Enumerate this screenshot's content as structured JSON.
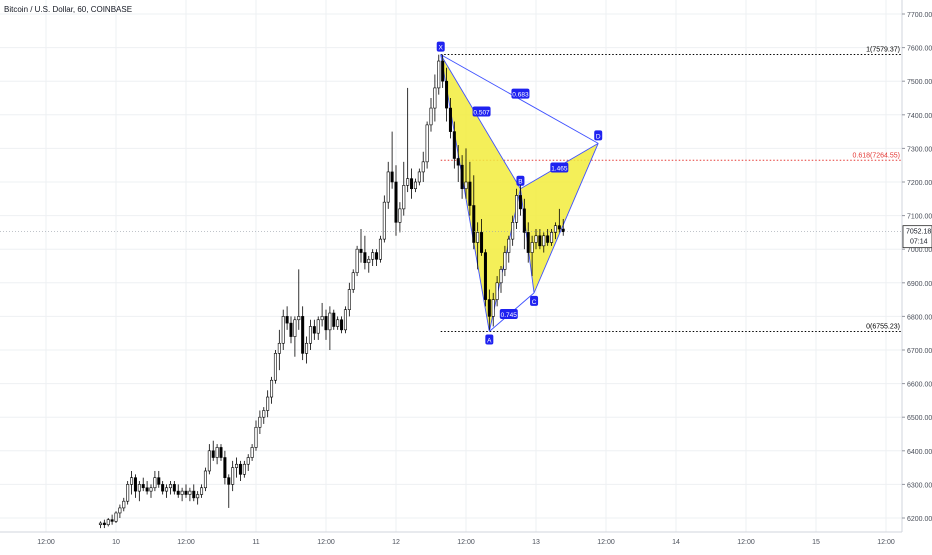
{
  "header": {
    "title": "Bitcoin / U.S. Dollar, 60, COINBASE"
  },
  "price_scale": {
    "last_price": "7052.18",
    "countdown": "07:14"
  },
  "colors": {
    "up_candle": "#ffffff",
    "down_candle": "#000000",
    "pattern_fill": "#f2ec3c",
    "pattern_line": "#3f51ff",
    "label_bg": "#1f22f0",
    "fib_black": "#000000",
    "fib_red": "#e53935",
    "grid": "#eef0f3"
  },
  "chart_data": {
    "type": "candlestick",
    "title": "Bitcoin / U.S. Dollar, 60, COINBASE",
    "ylim": [
      6160,
      7780
    ],
    "y_ticks": [
      6200,
      6300,
      6400,
      6500,
      6600,
      6700,
      6800,
      6900,
      7000,
      7100,
      7200,
      7300,
      7400,
      7500,
      7600,
      7700
    ],
    "x_range_bars": [
      0,
      248
    ],
    "x_ticks": [
      {
        "label": "12:00",
        "bar": 12
      },
      {
        "label": "10",
        "bar": 30
      },
      {
        "label": "12:00",
        "bar": 48
      },
      {
        "label": "11",
        "bar": 66
      },
      {
        "label": "12:00",
        "bar": 84
      },
      {
        "label": "12",
        "bar": 102
      },
      {
        "label": "12:00",
        "bar": 120
      },
      {
        "label": "13",
        "bar": 138
      },
      {
        "label": "12:00",
        "bar": 156
      },
      {
        "label": "14",
        "bar": 174
      },
      {
        "label": "12:00",
        "bar": 192
      },
      {
        "label": "15",
        "bar": 210
      },
      {
        "label": "12:00",
        "bar": 228
      }
    ],
    "grid": true,
    "candles": [
      [
        26,
        6180,
        6190,
        6170,
        6185
      ],
      [
        27,
        6185,
        6195,
        6170,
        6180
      ],
      [
        28,
        6180,
        6200,
        6175,
        6195
      ],
      [
        29,
        6195,
        6210,
        6180,
        6190
      ],
      [
        30,
        6190,
        6220,
        6185,
        6215
      ],
      [
        31,
        6215,
        6240,
        6200,
        6230
      ],
      [
        32,
        6230,
        6260,
        6220,
        6250
      ],
      [
        33,
        6250,
        6310,
        6240,
        6300
      ],
      [
        34,
        6300,
        6340,
        6270,
        6320
      ],
      [
        35,
        6320,
        6330,
        6260,
        6280
      ],
      [
        36,
        6280,
        6310,
        6250,
        6300
      ],
      [
        37,
        6300,
        6320,
        6280,
        6290
      ],
      [
        38,
        6290,
        6310,
        6270,
        6280
      ],
      [
        39,
        6280,
        6300,
        6260,
        6290
      ],
      [
        40,
        6290,
        6340,
        6280,
        6320
      ],
      [
        41,
        6320,
        6340,
        6290,
        6300
      ],
      [
        42,
        6300,
        6310,
        6270,
        6280
      ],
      [
        43,
        6280,
        6300,
        6260,
        6290
      ],
      [
        44,
        6290,
        6310,
        6270,
        6300
      ],
      [
        45,
        6300,
        6310,
        6270,
        6280
      ],
      [
        46,
        6280,
        6300,
        6260,
        6270
      ],
      [
        47,
        6270,
        6290,
        6250,
        6280
      ],
      [
        48,
        6280,
        6300,
        6260,
        6270
      ],
      [
        49,
        6270,
        6290,
        6250,
        6280
      ],
      [
        50,
        6280,
        6300,
        6250,
        6260
      ],
      [
        51,
        6260,
        6280,
        6240,
        6270
      ],
      [
        52,
        6270,
        6300,
        6260,
        6290
      ],
      [
        53,
        6290,
        6350,
        6280,
        6340
      ],
      [
        54,
        6340,
        6420,
        6330,
        6400
      ],
      [
        55,
        6400,
        6430,
        6370,
        6380
      ],
      [
        56,
        6380,
        6420,
        6360,
        6410
      ],
      [
        57,
        6410,
        6420,
        6370,
        6380
      ],
      [
        58,
        6380,
        6400,
        6300,
        6320
      ],
      [
        59,
        6320,
        6330,
        6230,
        6300
      ],
      [
        60,
        6300,
        6370,
        6280,
        6350
      ],
      [
        61,
        6350,
        6380,
        6320,
        6360
      ],
      [
        62,
        6360,
        6370,
        6310,
        6330
      ],
      [
        63,
        6330,
        6370,
        6320,
        6360
      ],
      [
        64,
        6360,
        6390,
        6340,
        6380
      ],
      [
        65,
        6380,
        6420,
        6370,
        6410
      ],
      [
        66,
        6410,
        6490,
        6400,
        6470
      ],
      [
        67,
        6470,
        6520,
        6450,
        6500
      ],
      [
        68,
        6500,
        6530,
        6480,
        6520
      ],
      [
        69,
        6520,
        6580,
        6500,
        6560
      ],
      [
        70,
        6560,
        6620,
        6540,
        6610
      ],
      [
        71,
        6610,
        6700,
        6600,
        6690
      ],
      [
        72,
        6690,
        6760,
        6640,
        6720
      ],
      [
        73,
        6720,
        6820,
        6700,
        6800
      ],
      [
        74,
        6800,
        6830,
        6760,
        6780
      ],
      [
        75,
        6780,
        6800,
        6720,
        6740
      ],
      [
        76,
        6740,
        6800,
        6680,
        6790
      ],
      [
        77,
        6790,
        6940,
        6760,
        6800
      ],
      [
        78,
        6800,
        6830,
        6670,
        6690
      ],
      [
        79,
        6690,
        6740,
        6660,
        6720
      ],
      [
        80,
        6720,
        6790,
        6700,
        6770
      ],
      [
        81,
        6770,
        6790,
        6730,
        6750
      ],
      [
        82,
        6750,
        6800,
        6730,
        6790
      ],
      [
        83,
        6790,
        6840,
        6770,
        6800
      ],
      [
        84,
        6800,
        6820,
        6730,
        6760
      ],
      [
        85,
        6760,
        6830,
        6700,
        6810
      ],
      [
        86,
        6810,
        6820,
        6760,
        6770
      ],
      [
        87,
        6770,
        6800,
        6760,
        6790
      ],
      [
        88,
        6790,
        6800,
        6750,
        6760
      ],
      [
        89,
        6760,
        6830,
        6750,
        6820
      ],
      [
        90,
        6820,
        6900,
        6800,
        6880
      ],
      [
        91,
        6880,
        6940,
        6870,
        6930
      ],
      [
        92,
        6930,
        7010,
        6920,
        7000
      ],
      [
        93,
        7000,
        7060,
        6960,
        6990
      ],
      [
        94,
        6990,
        7040,
        6940,
        6960
      ],
      [
        95,
        6960,
        6980,
        6930,
        6970
      ],
      [
        96,
        6970,
        7000,
        6950,
        6990
      ],
      [
        97,
        6990,
        7000,
        6950,
        6970
      ],
      [
        98,
        6970,
        7040,
        6960,
        7030
      ],
      [
        99,
        7030,
        7160,
        7020,
        7140
      ],
      [
        100,
        7140,
        7260,
        7120,
        7230
      ],
      [
        101,
        7230,
        7350,
        7180,
        7200
      ],
      [
        102,
        7200,
        7250,
        7040,
        7080
      ],
      [
        103,
        7080,
        7140,
        7050,
        7120
      ],
      [
        104,
        7120,
        7260,
        7100,
        7190
      ],
      [
        105,
        7190,
        7480,
        7170,
        7210
      ],
      [
        106,
        7210,
        7240,
        7150,
        7180
      ],
      [
        107,
        7180,
        7210,
        7170,
        7200
      ],
      [
        108,
        7200,
        7240,
        7190,
        7230
      ],
      [
        109,
        7230,
        7290,
        7200,
        7260
      ],
      [
        110,
        7260,
        7380,
        7240,
        7370
      ],
      [
        111,
        7370,
        7450,
        7350,
        7420
      ],
      [
        112,
        7420,
        7520,
        7380,
        7480
      ],
      [
        113,
        7480,
        7579,
        7460,
        7560
      ],
      [
        114,
        7560,
        7579,
        7480,
        7500
      ],
      [
        115,
        7500,
        7540,
        7380,
        7420
      ],
      [
        116,
        7420,
        7450,
        7330,
        7350
      ],
      [
        117,
        7350,
        7380,
        7240,
        7270
      ],
      [
        118,
        7270,
        7310,
        7200,
        7250
      ],
      [
        119,
        7250,
        7280,
        7150,
        7180
      ],
      [
        120,
        7180,
        7300,
        7150,
        7200
      ],
      [
        121,
        7200,
        7260,
        7100,
        7130
      ],
      [
        122,
        7130,
        7220,
        7000,
        7020
      ],
      [
        123,
        7020,
        7080,
        6940,
        7050
      ],
      [
        124,
        7050,
        7090,
        6980,
        6990
      ],
      [
        125,
        6990,
        7000,
        6830,
        6850
      ],
      [
        126,
        6850,
        6880,
        6760,
        6800
      ],
      [
        127,
        6800,
        6870,
        6770,
        6850
      ],
      [
        128,
        6850,
        6920,
        6830,
        6900
      ],
      [
        129,
        6900,
        6950,
        6870,
        6940
      ],
      [
        130,
        6940,
        7010,
        6920,
        6990
      ],
      [
        131,
        6990,
        7040,
        6960,
        7030
      ],
      [
        132,
        7030,
        7100,
        7010,
        7080
      ],
      [
        133,
        7080,
        7180,
        7060,
        7160
      ],
      [
        134,
        7160,
        7190,
        7100,
        7120
      ],
      [
        135,
        7120,
        7150,
        7000,
        7050
      ],
      [
        136,
        7050,
        7080,
        6960,
        6990
      ],
      [
        137,
        6990,
        7040,
        6920,
        7020
      ],
      [
        138,
        7020,
        7060,
        7000,
        7040
      ],
      [
        139,
        7040,
        7060,
        7000,
        7010
      ],
      [
        140,
        7010,
        7050,
        6990,
        7040
      ],
      [
        141,
        7040,
        7060,
        7010,
        7020
      ],
      [
        142,
        7020,
        7060,
        7010,
        7050
      ],
      [
        143,
        7050,
        7080,
        7030,
        7070
      ],
      [
        144,
        7070,
        7120,
        7050,
        7060
      ],
      [
        145,
        7060,
        7090,
        7040,
        7052
      ]
    ],
    "harmonic_pattern": {
      "points": [
        {
          "label": "X",
          "bar": 113.5,
          "price": 7579
        },
        {
          "label": "A",
          "bar": 126,
          "price": 6755
        },
        {
          "label": "B",
          "bar": 134,
          "price": 7180
        },
        {
          "label": "C",
          "bar": 137.5,
          "price": 6870
        },
        {
          "label": "D",
          "bar": 154,
          "price": 7315
        }
      ],
      "ratios": [
        {
          "label": "0.507",
          "bar": 124,
          "price": 7410
        },
        {
          "label": "0.683",
          "bar": 134,
          "price": 7463
        },
        {
          "label": "1.465",
          "bar": 144,
          "price": 7243
        },
        {
          "label": "0.745",
          "bar": 131,
          "price": 6807
        }
      ]
    },
    "fib_levels": [
      {
        "label": "1(7579.37)",
        "price": 7579.37,
        "color": "black"
      },
      {
        "label": "0.618(7264.55)",
        "price": 7264.55,
        "color": "red"
      },
      {
        "label": "0(6755.23)",
        "price": 6755.23,
        "color": "black"
      }
    ],
    "last_price": 7052.18
  }
}
